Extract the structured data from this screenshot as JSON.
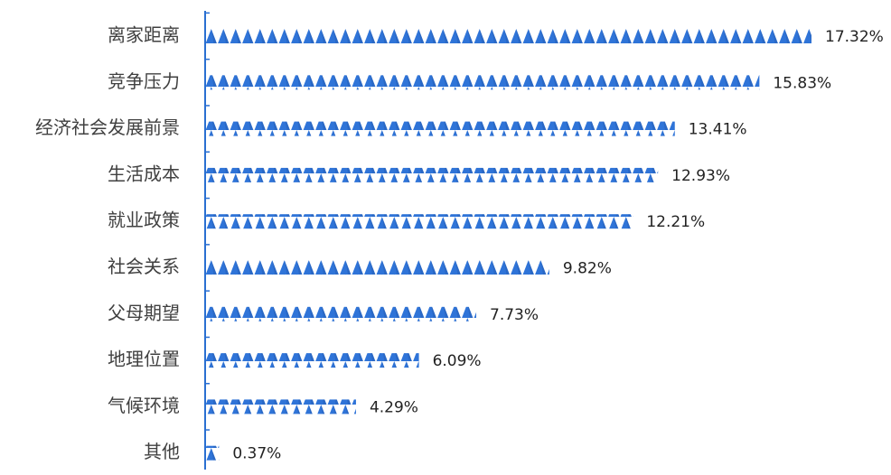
{
  "chart_data": {
    "type": "bar",
    "orientation": "horizontal",
    "categories": [
      "离家距离",
      "竞争压力",
      "经济社会发展前景",
      "生活成本",
      "就业政策",
      "社会关系",
      "父母期望",
      "地理位置",
      "气候环境",
      "其他"
    ],
    "values": [
      17.32,
      15.83,
      13.41,
      12.93,
      12.21,
      9.82,
      7.73,
      6.09,
      4.29,
      0.37
    ],
    "value_labels": [
      "17.32%",
      "15.83%",
      "13.41%",
      "12.93%",
      "12.21%",
      "9.82%",
      "7.73%",
      "6.09%",
      "4.29%",
      "0.37%"
    ],
    "title": "",
    "xlabel": "",
    "ylabel": "",
    "xlim": [
      0,
      17.32
    ],
    "grid": false,
    "legend": "none",
    "bar_style": "stacked-triangle-pictograph"
  },
  "colors": {
    "bar": "#2f74d8",
    "bar_dark": "#1f4f9f",
    "axis": "#2a6fd1",
    "category_text": "#404040",
    "value_text": "#222222"
  }
}
